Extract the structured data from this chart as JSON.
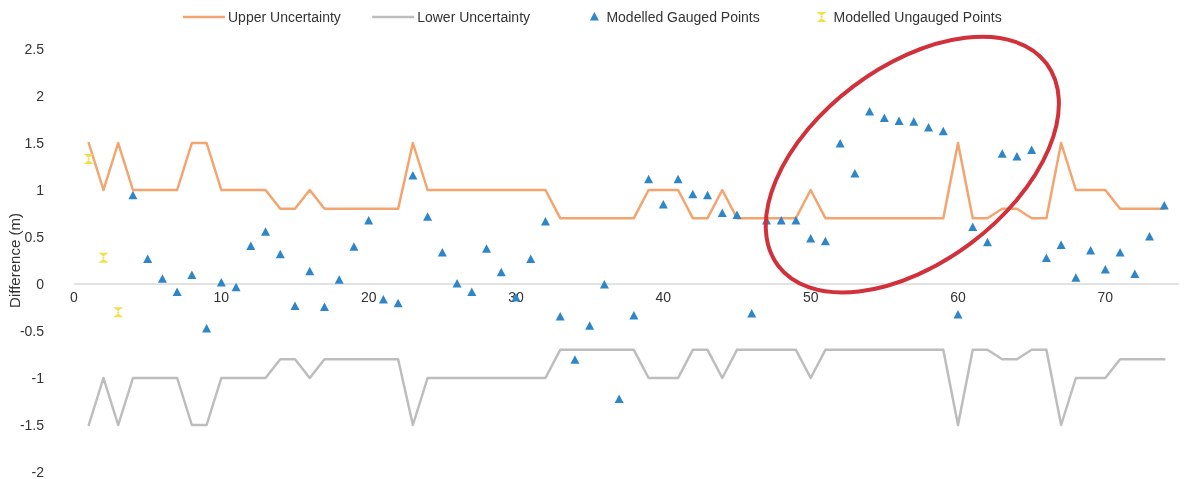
{
  "chart_data": {
    "type": "line",
    "ylabel": "Difference (m)",
    "xlim": [
      0,
      75
    ],
    "ylim": [
      -2,
      2.5
    ],
    "xticks": [
      0,
      10,
      20,
      30,
      40,
      50,
      60,
      70
    ],
    "yticks": [
      -2,
      -1.5,
      -1,
      -0.5,
      0,
      0.5,
      1,
      1.5,
      2,
      2.5
    ],
    "grid": false,
    "legend": "top",
    "series": [
      {
        "name": "Upper Uncertainty",
        "color": "#f4a46e",
        "marker": "none",
        "x": [
          1,
          2,
          3,
          4,
          5,
          6,
          7,
          8,
          9,
          10,
          11,
          12,
          13,
          14,
          15,
          16,
          17,
          18,
          19,
          20,
          21,
          22,
          23,
          24,
          25,
          26,
          27,
          28,
          29,
          30,
          31,
          32,
          33,
          34,
          35,
          36,
          37,
          38,
          39,
          40,
          41,
          42,
          43,
          44,
          45,
          46,
          47,
          48,
          49,
          50,
          51,
          52,
          53,
          54,
          55,
          56,
          57,
          58,
          59,
          60,
          61,
          62,
          63,
          64,
          65,
          66,
          67,
          68,
          69,
          70,
          71,
          72,
          73,
          74
        ],
        "values": [
          1.5,
          1,
          1.5,
          1,
          1,
          1,
          1,
          1.5,
          1.5,
          1,
          1,
          1,
          1,
          0.8,
          0.8,
          1,
          0.8,
          0.8,
          0.8,
          0.8,
          0.8,
          0.8,
          1.5,
          1,
          1,
          1,
          1,
          1,
          1,
          1,
          1,
          1,
          0.7,
          0.7,
          0.7,
          0.7,
          0.7,
          0.7,
          1,
          1,
          1,
          0.7,
          0.7,
          1,
          0.7,
          0.7,
          0.7,
          0.7,
          0.7,
          1,
          0.7,
          0.7,
          0.7,
          0.7,
          0.7,
          0.7,
          0.7,
          0.7,
          0.7,
          1.5,
          0.7,
          0.7,
          0.8,
          0.8,
          0.7,
          0.7,
          1.5,
          1,
          1,
          1,
          0.8,
          0.8,
          0.8,
          0.8
        ]
      },
      {
        "name": "Lower Uncertainty",
        "color": "#bdbdbd",
        "marker": "none",
        "x": [
          1,
          2,
          3,
          4,
          5,
          6,
          7,
          8,
          9,
          10,
          11,
          12,
          13,
          14,
          15,
          16,
          17,
          18,
          19,
          20,
          21,
          22,
          23,
          24,
          25,
          26,
          27,
          28,
          29,
          30,
          31,
          32,
          33,
          34,
          35,
          36,
          37,
          38,
          39,
          40,
          41,
          42,
          43,
          44,
          45,
          46,
          47,
          48,
          49,
          50,
          51,
          52,
          53,
          54,
          55,
          56,
          57,
          58,
          59,
          60,
          61,
          62,
          63,
          64,
          65,
          66,
          67,
          68,
          69,
          70,
          71,
          72,
          73,
          74
        ],
        "values": [
          -1.5,
          -1,
          -1.5,
          -1,
          -1,
          -1,
          -1,
          -1.5,
          -1.5,
          -1,
          -1,
          -1,
          -1,
          -0.8,
          -0.8,
          -1,
          -0.8,
          -0.8,
          -0.8,
          -0.8,
          -0.8,
          -0.8,
          -1.5,
          -1,
          -1,
          -1,
          -1,
          -1,
          -1,
          -1,
          -1,
          -1,
          -0.7,
          -0.7,
          -0.7,
          -0.7,
          -0.7,
          -0.7,
          -1,
          -1,
          -1,
          -0.7,
          -0.7,
          -1,
          -0.7,
          -0.7,
          -0.7,
          -0.7,
          -0.7,
          -1,
          -0.7,
          -0.7,
          -0.7,
          -0.7,
          -0.7,
          -0.7,
          -0.7,
          -0.7,
          -0.7,
          -1.5,
          -0.7,
          -0.7,
          -0.8,
          -0.8,
          -0.7,
          -0.7,
          -1.5,
          -1,
          -1,
          -1,
          -0.8,
          -0.8,
          -0.8,
          -0.8
        ]
      },
      {
        "name": "Modelled Gauged Points",
        "type": "scatter",
        "color": "#2e86c8",
        "marker": "triangle",
        "x": [
          4,
          5,
          6,
          7,
          8,
          9,
          10,
          11,
          12,
          13,
          14,
          15,
          16,
          17,
          18,
          19,
          20,
          21,
          22,
          23,
          24,
          25,
          26,
          27,
          28,
          29,
          30,
          31,
          32,
          33,
          34,
          35,
          36,
          37,
          38,
          39,
          40,
          41,
          42,
          43,
          44,
          45,
          46,
          47,
          48,
          49,
          50,
          51,
          52,
          53,
          54,
          55,
          56,
          57,
          58,
          59,
          60,
          61,
          62,
          63,
          64,
          65,
          66,
          67,
          68,
          69,
          70,
          71,
          72,
          73,
          74
        ],
        "values": [
          0.94,
          0.26,
          0.05,
          -0.09,
          0.09,
          -0.48,
          0.01,
          -0.04,
          0.4,
          0.55,
          0.31,
          -0.24,
          0.13,
          -0.25,
          0.04,
          0.39,
          0.67,
          -0.17,
          -0.21,
          1.15,
          0.71,
          0.33,
          0,
          -0.09,
          0.37,
          0.12,
          -0.15,
          0.26,
          0.66,
          -0.35,
          -0.81,
          -0.45,
          -0.01,
          -1.23,
          -0.34,
          1.11,
          0.84,
          1.11,
          0.95,
          0.94,
          0.75,
          0.73,
          -0.32,
          0.67,
          0.67,
          0.67,
          0.48,
          0.45,
          1.49,
          1.17,
          1.83,
          1.76,
          1.73,
          1.72,
          1.66,
          1.62,
          -0.33,
          0.6,
          0.44,
          1.38,
          1.35,
          1.42,
          0.27,
          0.41,
          0.06,
          0.35,
          0.15,
          0.33,
          0.1,
          0.5,
          0.83
        ]
      },
      {
        "name": "Modelled Ungauged Points",
        "type": "scatter",
        "color": "#f2df4a",
        "marker": "cross",
        "x": [
          1,
          2,
          3
        ],
        "values": [
          1.33,
          0.28,
          -0.3
        ]
      }
    ]
  }
}
